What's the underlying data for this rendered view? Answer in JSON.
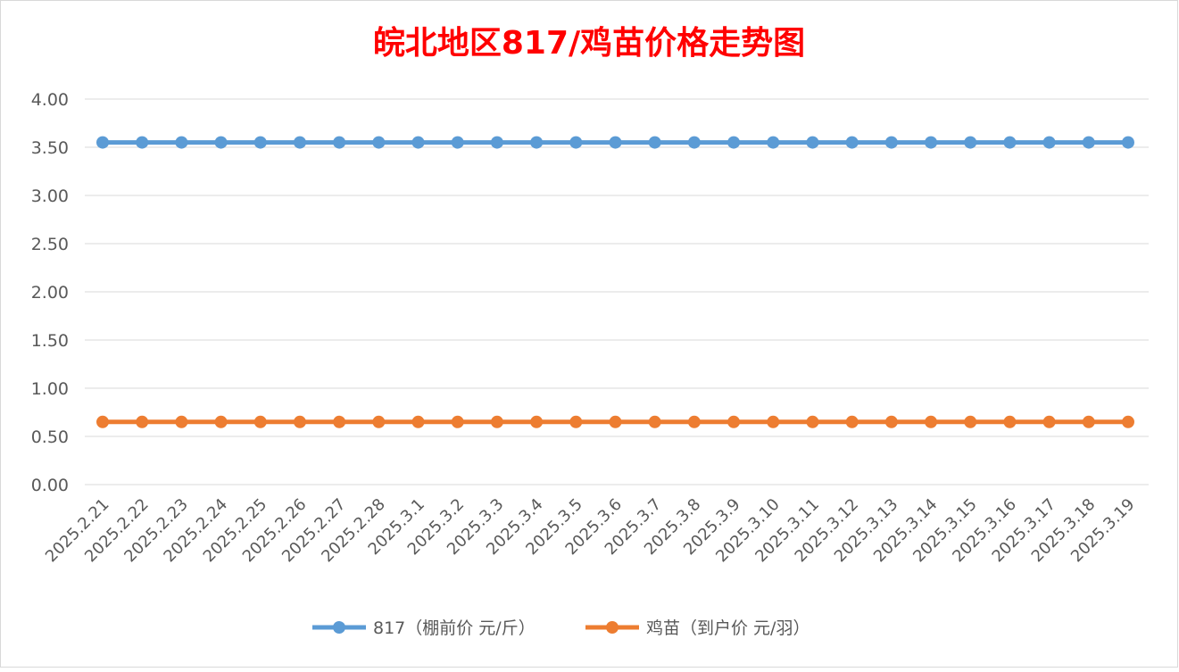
{
  "chart_data": {
    "type": "line",
    "title": "皖北地区817/鸡苗价格走势图",
    "categories": [
      "2025.2.21",
      "2025.2.22",
      "2025.2.23",
      "2025.2.24",
      "2025.2.25",
      "2025.2.26",
      "2025.2.27",
      "2025.2.28",
      "2025.3.1",
      "2025.3.2",
      "2025.3.3",
      "2025.3.4",
      "2025.3.5",
      "2025.3.6",
      "2025.3.7",
      "2025.3.8",
      "2025.3.9",
      "2025.3.10",
      "2025.3.11",
      "2025.3.12",
      "2025.3.13",
      "2025.3.14",
      "2025.3.15",
      "2025.3.16",
      "2025.3.17",
      "2025.3.18",
      "2025.3.19"
    ],
    "series": [
      {
        "name": "817（棚前价 元/斤）",
        "color": "#5b9bd5",
        "values": [
          3.55,
          3.55,
          3.55,
          3.55,
          3.55,
          3.55,
          3.55,
          3.55,
          3.55,
          3.55,
          3.55,
          3.55,
          3.55,
          3.55,
          3.55,
          3.55,
          3.55,
          3.55,
          3.55,
          3.55,
          3.55,
          3.55,
          3.55,
          3.55,
          3.55,
          3.55,
          3.55
        ]
      },
      {
        "name": "鸡苗（到户价 元/羽）",
        "color": "#ed7d31",
        "values": [
          0.65,
          0.65,
          0.65,
          0.65,
          0.65,
          0.65,
          0.65,
          0.65,
          0.65,
          0.65,
          0.65,
          0.65,
          0.65,
          0.65,
          0.65,
          0.65,
          0.65,
          0.65,
          0.65,
          0.65,
          0.65,
          0.65,
          0.65,
          0.65,
          0.65,
          0.65,
          0.65
        ]
      }
    ],
    "yticks": [
      "0.00",
      "0.50",
      "1.00",
      "1.50",
      "2.00",
      "2.50",
      "3.00",
      "3.50",
      "4.00"
    ],
    "ylim": [
      0,
      4
    ],
    "grid": true,
    "legend": "bottom",
    "title_color": "#ff0000"
  }
}
